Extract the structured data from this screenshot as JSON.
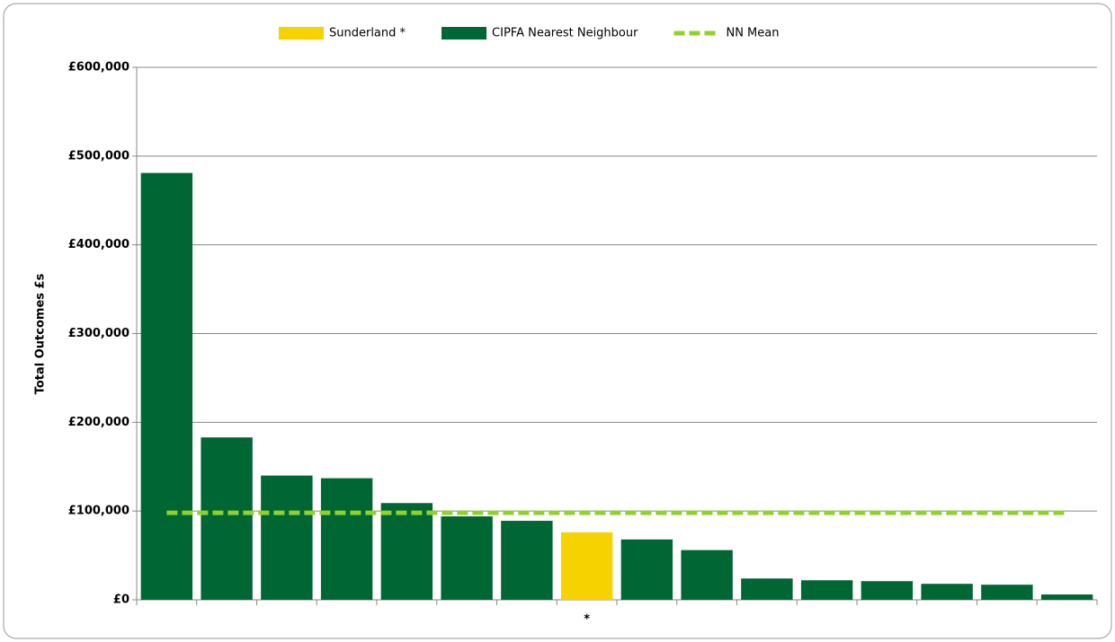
{
  "chart_data": {
    "type": "bar",
    "y_axis_label": "Total Outcomes £s",
    "categories": [
      null,
      null,
      null,
      null,
      null,
      null,
      null,
      "*",
      null,
      null,
      null,
      null,
      null,
      null,
      null,
      null
    ],
    "series": [
      {
        "name": "Sunderland *",
        "color": "#f5d200",
        "values": [
          null,
          null,
          null,
          null,
          null,
          null,
          null,
          76000,
          null,
          null,
          null,
          null,
          null,
          null,
          null,
          null
        ]
      },
      {
        "name": "CIPFA Nearest Neighbour",
        "color": "#006633",
        "values": [
          481000,
          183000,
          140000,
          137000,
          109000,
          94000,
          89000,
          null,
          68000,
          56000,
          24000,
          22000,
          21000,
          18000,
          17000,
          6000
        ]
      }
    ],
    "mean_line": {
      "name": "NN Mean",
      "color": "#8fd32a",
      "value": 98000
    },
    "ylim": [
      0,
      600000
    ],
    "yticks": [
      {
        "value": 0,
        "label": "£0"
      },
      {
        "value": 100000,
        "label": "£100,000"
      },
      {
        "value": 200000,
        "label": "£200,000"
      },
      {
        "value": 300000,
        "label": "£300,000"
      },
      {
        "value": 400000,
        "label": "£400,000"
      },
      {
        "value": 500000,
        "label": "£500,000"
      },
      {
        "value": 600000,
        "label": "£600,000"
      }
    ],
    "grid": true
  }
}
